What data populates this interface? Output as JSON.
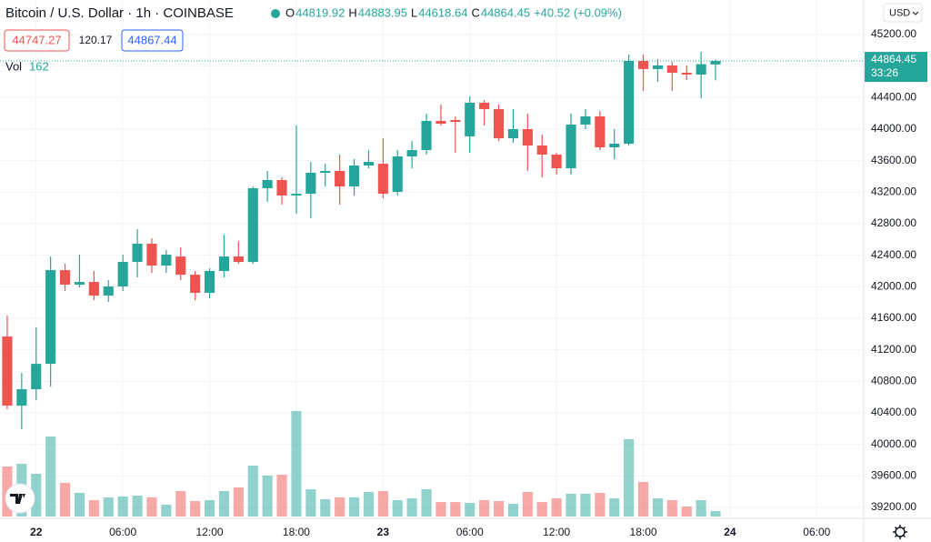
{
  "header": {
    "title": "Bitcoin / U.S. Dollar · 1h · COINBASE",
    "ohlc": [
      {
        "label": "O",
        "value": "44819.92"
      },
      {
        "label": "H",
        "value": "44883.95"
      },
      {
        "label": "L",
        "value": "44618.64"
      },
      {
        "label": "C",
        "value": "44864.45"
      }
    ],
    "change": "+40.52 (+0.09%)",
    "bid": "44747.27",
    "spread": "120.17",
    "ask": "44867.44",
    "volume_label": "Vol",
    "volume_value": "162",
    "currency": "USD"
  },
  "chart_data": {
    "type": "candlestick",
    "x": [
      0,
      1,
      2,
      3,
      4,
      5,
      6,
      7,
      8,
      9,
      10,
      11,
      12,
      13,
      14,
      15,
      16,
      17,
      18,
      19,
      20,
      21,
      22,
      23,
      24,
      25,
      26,
      27,
      28,
      29,
      30,
      31,
      32,
      33,
      34,
      35,
      36,
      37,
      38,
      39,
      40,
      41,
      42,
      43,
      44,
      45,
      46,
      47,
      48,
      49
    ],
    "open": [
      41369,
      40492,
      40700,
      41022,
      42211,
      42027,
      42061,
      41888,
      42004,
      42315,
      42546,
      42269,
      42384,
      42153,
      41923,
      42200,
      42384,
      42315,
      43250,
      43354,
      43157,
      43180,
      43446,
      43469,
      43273,
      43538,
      43561,
      43204,
      43654,
      43734,
      44104,
      44115,
      43908,
      44335,
      44254,
      43884,
      44000,
      43792,
      43677,
      43503,
      44058,
      44161,
      43769,
      43815,
      44865,
      44762,
      44808,
      44715,
      44692,
      44819.92
    ],
    "high": [
      41634,
      40907,
      41484,
      42384,
      42292,
      42407,
      42200,
      42084,
      42407,
      42730,
      42615,
      42465,
      42500,
      42200,
      42234,
      42661,
      42580,
      43273,
      43469,
      43388,
      44046,
      43584,
      43561,
      43677,
      43619,
      43734,
      43884,
      43734,
      43850,
      44196,
      44312,
      44161,
      44415,
      44369,
      44312,
      44254,
      44196,
      43931,
      43700,
      44196,
      44254,
      44231,
      44000,
      44946,
      44946,
      44888,
      44854,
      44808,
      44980,
      44883.95
    ],
    "low": [
      40446,
      40192,
      40561,
      40734,
      41946,
      41992,
      41830,
      41807,
      41946,
      42119,
      42177,
      42177,
      42084,
      41830,
      41854,
      42119,
      42292,
      42292,
      43077,
      43042,
      42927,
      42869,
      43273,
      43042,
      43157,
      43503,
      43123,
      43157,
      43503,
      43677,
      44046,
      43700,
      43700,
      44046,
      43850,
      43827,
      43469,
      43388,
      43423,
      43423,
      44000,
      43734,
      43619,
      43792,
      44485,
      44600,
      44485,
      44623,
      44392,
      44618.64
    ],
    "close": [
      40492,
      40700,
      41022,
      42211,
      42027,
      42061,
      41888,
      42004,
      42315,
      42546,
      42269,
      42407,
      42153,
      41923,
      42200,
      42384,
      42315,
      43250,
      43354,
      43157,
      43180,
      43446,
      43469,
      43273,
      43538,
      43584,
      43180,
      43654,
      43734,
      44104,
      44069,
      44092,
      44335,
      44254,
      43884,
      44000,
      43792,
      43677,
      43503,
      44058,
      44161,
      43769,
      43815,
      44865,
      44762,
      44808,
      44715,
      44692,
      44823.93,
      44864.45
    ],
    "volume": [
      1485,
      1566,
      1269,
      2376,
      999,
      702,
      486,
      567,
      594,
      621,
      567,
      351,
      756,
      459,
      486,
      756,
      864,
      1512,
      1215,
      1242,
      3132,
      810,
      513,
      567,
      567,
      729,
      756,
      486,
      540,
      810,
      432,
      432,
      405,
      486,
      459,
      378,
      729,
      432,
      540,
      675,
      675,
      702,
      540,
      2295,
      1026,
      540,
      486,
      297,
      486,
      162
    ],
    "up_color": "#26a69a",
    "down_color": "#ef5350",
    "xlim": [
      -0.5,
      59.25
    ],
    "xticks": [
      {
        "value": 2,
        "label": "22"
      },
      {
        "value": 8,
        "label": "06:00"
      },
      {
        "value": 14,
        "label": "12:00"
      },
      {
        "value": 20,
        "label": "18:00"
      },
      {
        "value": 26,
        "label": "23"
      },
      {
        "value": 32,
        "label": "06:00"
      },
      {
        "value": 38,
        "label": "12:00"
      },
      {
        "value": 44,
        "label": "18:00"
      },
      {
        "value": 50,
        "label": "24"
      },
      {
        "value": 56,
        "label": "06:00"
      }
    ],
    "ylim": [
      39085,
      45638
    ],
    "yticks": [
      {
        "value": 39200,
        "label": "39200.00"
      },
      {
        "value": 39600,
        "label": "39600.00"
      },
      {
        "value": 40000,
        "label": "40000.00"
      },
      {
        "value": 40400,
        "label": "40400.00"
      },
      {
        "value": 40800,
        "label": "40800.00"
      },
      {
        "value": 41200,
        "label": "41200.00"
      },
      {
        "value": 41600,
        "label": "41600.00"
      },
      {
        "value": 42000,
        "label": "42000.00"
      },
      {
        "value": 42400,
        "label": "42400.00"
      },
      {
        "value": 42800,
        "label": "42800.00"
      },
      {
        "value": 43200,
        "label": "43200.00"
      },
      {
        "value": 43600,
        "label": "43600.00"
      },
      {
        "value": 44000,
        "label": "44000.00"
      },
      {
        "value": 44400,
        "label": "44400.00"
      },
      {
        "value": 44800,
        "label": "44800.00"
      },
      {
        "value": 45200,
        "label": "45200.00"
      }
    ],
    "volume_ylim": [
      0,
      15336
    ],
    "last_price": {
      "value": 44864.45,
      "label": "44864.45",
      "countdown": "33:26"
    },
    "grid": true
  }
}
